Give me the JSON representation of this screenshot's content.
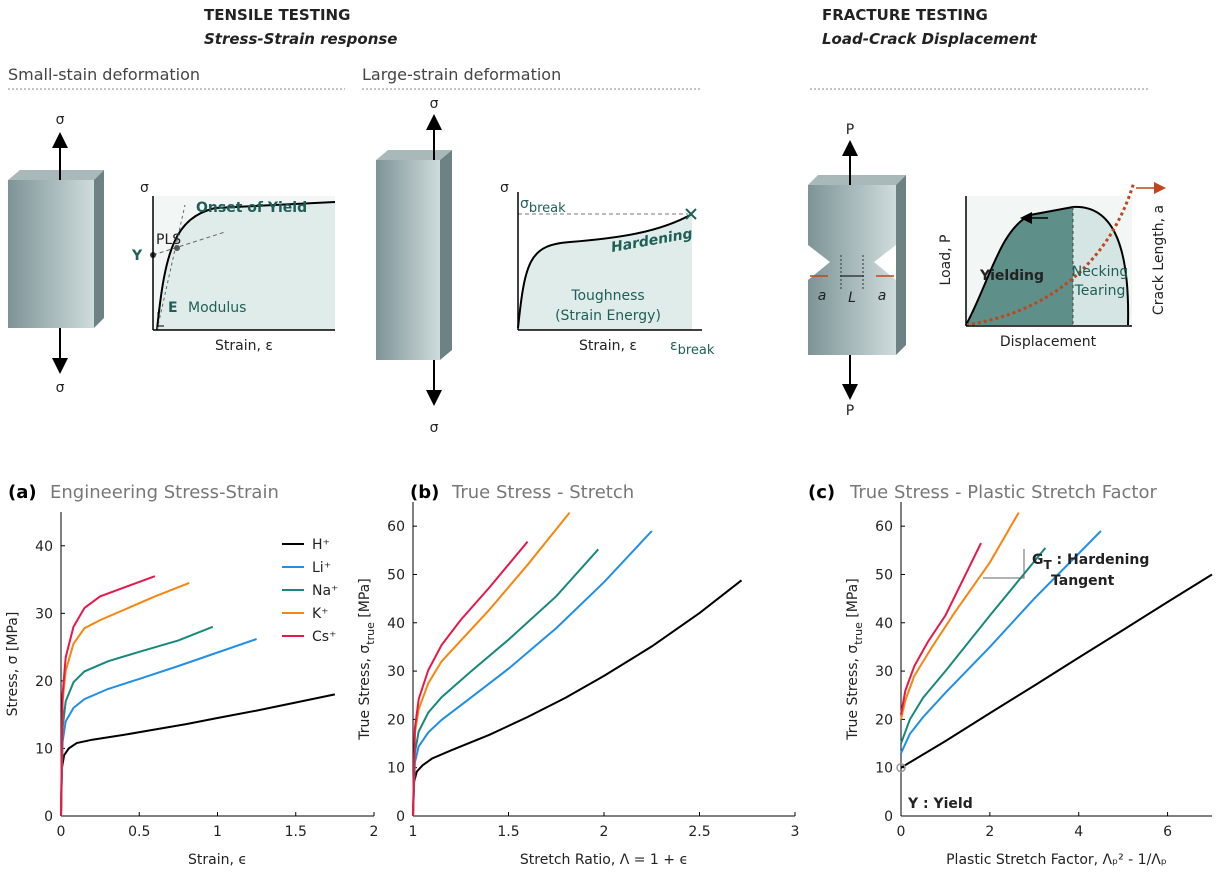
{
  "diagram": {
    "tensile": {
      "title": "TENSILE TESTING",
      "subtitle": "Stress-Strain response"
    },
    "fracture": {
      "title": "FRACTURE TESTING",
      "subtitle": "Load-Crack Displacement"
    },
    "small": {
      "heading": "Small-stain deformation",
      "sigma_top": "σ",
      "sigma_bottom": "σ",
      "axis_y": "σ",
      "yield": "Y",
      "pls": "PLS",
      "onset": "Onset of Yield",
      "e": "E",
      "modulus": "Modulus",
      "axis_x": "Strain, ε"
    },
    "large": {
      "heading": "Large-strain deformation",
      "sigma_top": "σ",
      "sigma_bottom": "σ",
      "axis_y": "σ",
      "sigma_break": "σ",
      "break_sub": "break",
      "hardening": "Hardening",
      "toughness": "Toughness",
      "strain_energy": "(Strain Energy)",
      "axis_x": "Strain, ε",
      "eps_break": "ε",
      "eps_sub": "break"
    },
    "crack": {
      "p_top": "P",
      "p_bottom": "P",
      "axis_y": "Load, P",
      "crack_length": "Crack Length, a",
      "yielding": "Yielding",
      "necking": "Necking",
      "tearing": "Tearing",
      "axis_x": "Displacement",
      "a_left": "a",
      "l": "L",
      "a_right": "a"
    }
  },
  "chart_data": [
    {
      "type": "line",
      "label": "(a)",
      "title": "Engineering Stress-Strain",
      "xlabel": "Strain,  ϵ",
      "ylabel": "Stress,  σ [MPa]",
      "xlim": [
        0,
        2
      ],
      "xticks": [
        0,
        0.5,
        1,
        1.5,
        2
      ],
      "ylim": [
        0,
        45
      ],
      "yticks": [
        0,
        10,
        20,
        30,
        40
      ],
      "legend": "upper right",
      "series": [
        {
          "name": "H⁺",
          "color": "#000000",
          "x": [
            0,
            0.005,
            0.02,
            0.05,
            0.1,
            0.2,
            0.4,
            0.6,
            0.8,
            1.0,
            1.25,
            1.5,
            1.75
          ],
          "values": [
            0,
            7,
            9,
            10,
            10.8,
            11.3,
            12,
            12.8,
            13.6,
            14.5,
            15.6,
            16.8,
            18
          ]
        },
        {
          "name": "Li⁺",
          "color": "#1f8fe8",
          "x": [
            0,
            0.01,
            0.03,
            0.08,
            0.15,
            0.3,
            0.5,
            0.75,
            1.0,
            1.25
          ],
          "values": [
            0,
            11,
            14,
            16,
            17.3,
            18.8,
            20.3,
            22.2,
            24.2,
            26.2
          ]
        },
        {
          "name": "Na⁺",
          "color": "#16897e",
          "x": [
            0,
            0.01,
            0.03,
            0.08,
            0.15,
            0.3,
            0.5,
            0.75,
            0.97
          ],
          "values": [
            0,
            13,
            17,
            19.8,
            21.4,
            22.9,
            24.3,
            26,
            28
          ]
        },
        {
          "name": "K⁺",
          "color": "#f7860f",
          "x": [
            0,
            0.01,
            0.03,
            0.08,
            0.15,
            0.25,
            0.4,
            0.6,
            0.82
          ],
          "values": [
            0,
            17,
            21.5,
            25.5,
            27.8,
            29,
            30.5,
            32.5,
            34.5
          ]
        },
        {
          "name": "Cs⁺",
          "color": "#e8174a",
          "x": [
            0,
            0.01,
            0.03,
            0.08,
            0.15,
            0.25,
            0.4,
            0.6
          ],
          "values": [
            0,
            18,
            23.5,
            28,
            30.8,
            32.5,
            33.8,
            35.5
          ]
        }
      ]
    },
    {
      "type": "line",
      "label": "(b)",
      "title": "True Stress - Stretch",
      "xlabel": "Stretch Ratio,  Λ = 1 + ϵ",
      "ylabel": "True Stress,  σ",
      "ylabel_sub": "true",
      "ylabel_unit": " [MPa]",
      "xlim": [
        1,
        3
      ],
      "xticks": [
        1,
        1.5,
        2,
        2.5,
        3
      ],
      "ylim": [
        0,
        65
      ],
      "yticks": [
        0,
        10,
        20,
        30,
        40,
        50,
        60
      ],
      "series": [
        {
          "color": "#000000",
          "x": [
            1,
            1.005,
            1.02,
            1.05,
            1.1,
            1.2,
            1.4,
            1.6,
            1.8,
            2.0,
            2.25,
            2.5,
            2.72
          ],
          "values": [
            0,
            7,
            9.2,
            10.5,
            11.9,
            13.6,
            16.8,
            20.5,
            24.5,
            29,
            35.1,
            42,
            48.8
          ]
        },
        {
          "color": "#1f8fe8",
          "x": [
            1,
            1.01,
            1.03,
            1.08,
            1.15,
            1.3,
            1.5,
            1.75,
            2.0,
            2.25
          ],
          "values": [
            0,
            11.1,
            14.4,
            17.3,
            19.9,
            24.4,
            30.5,
            38.9,
            48.4,
            59
          ]
        },
        {
          "color": "#16897e",
          "x": [
            1,
            1.01,
            1.03,
            1.08,
            1.15,
            1.3,
            1.5,
            1.75,
            1.97
          ],
          "values": [
            0,
            13.1,
            17.5,
            21.4,
            24.6,
            29.8,
            36.5,
            45.5,
            55.2
          ]
        },
        {
          "color": "#f7860f",
          "x": [
            1,
            1.01,
            1.03,
            1.08,
            1.15,
            1.25,
            1.4,
            1.6,
            1.82
          ],
          "values": [
            0,
            17.2,
            22.1,
            27.5,
            32,
            36.3,
            42.7,
            52,
            62.8
          ]
        },
        {
          "color": "#e8174a",
          "x": [
            1,
            1.01,
            1.03,
            1.08,
            1.15,
            1.25,
            1.4,
            1.6
          ],
          "values": [
            0,
            18.2,
            24.2,
            30.2,
            35.4,
            40.6,
            47.3,
            56.8
          ]
        }
      ]
    },
    {
      "type": "line",
      "label": "(c)",
      "title": "True Stress - Plastic Stretch Factor",
      "xlabel": "Plastic Stretch Factor,  Λₚ² - 1/Λₚ",
      "ylabel": "True Stress,  σ",
      "ylabel_sub": "true",
      "ylabel_unit": " [MPa]",
      "xlim": [
        0,
        7
      ],
      "xticks": [
        0,
        2,
        4,
        6
      ],
      "ylim": [
        0,
        65
      ],
      "yticks": [
        0,
        10,
        20,
        30,
        40,
        50,
        60
      ],
      "annotation_gt": "G",
      "annotation_gt_sub": "T",
      "annotation_hardening": " : Hardening",
      "annotation_tangent": "Tangent",
      "annotation_yield": "Y : Yield",
      "series": [
        {
          "color": "#000000",
          "x": [
            0,
            1,
            2,
            3,
            4,
            5,
            6,
            7
          ],
          "values": [
            10,
            15.5,
            21.3,
            27,
            32.8,
            38.5,
            44.3,
            50
          ]
        },
        {
          "color": "#1f8fe8",
          "x": [
            0,
            0.2,
            0.5,
            1,
            2,
            3,
            4.5
          ],
          "values": [
            13,
            17,
            20.5,
            25.5,
            35,
            45,
            59
          ]
        },
        {
          "color": "#16897e",
          "x": [
            0,
            0.2,
            0.5,
            1,
            2,
            3.25
          ],
          "values": [
            15,
            20,
            24.5,
            30,
            41.5,
            55.5
          ]
        },
        {
          "color": "#f7860f",
          "x": [
            0,
            0.1,
            0.3,
            0.7,
            1.2,
            2,
            2.65
          ],
          "values": [
            20,
            24,
            29,
            35,
            42,
            52.5,
            62.8
          ]
        },
        {
          "color": "#e8174a",
          "x": [
            0,
            0.1,
            0.3,
            0.6,
            1,
            1.4,
            1.8
          ],
          "values": [
            21,
            26,
            31,
            36,
            41.5,
            49,
            56.5
          ]
        }
      ]
    }
  ]
}
